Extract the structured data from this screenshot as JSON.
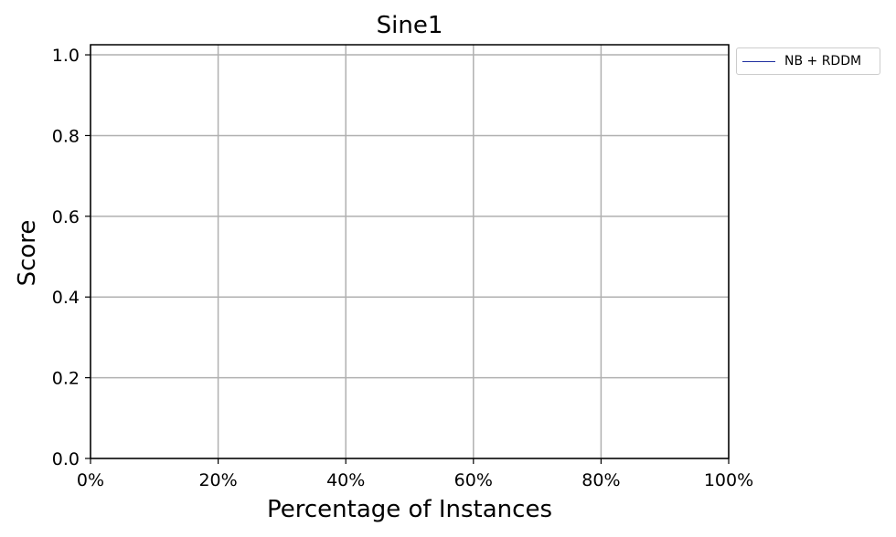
{
  "chart_data": {
    "type": "line",
    "title": "Sine1",
    "xlabel": "Percentage of Instances",
    "ylabel": "Score",
    "xlim": [
      0,
      100
    ],
    "ylim": [
      0,
      1.0
    ],
    "x_ticks": [
      "0%",
      "20%",
      "40%",
      "60%",
      "80%",
      "100%"
    ],
    "x_tick_values": [
      0,
      20,
      40,
      60,
      80,
      100
    ],
    "y_ticks": [
      "0.0",
      "0.2",
      "0.4",
      "0.6",
      "0.8",
      "1.0"
    ],
    "y_tick_values": [
      0.0,
      0.2,
      0.4,
      0.6,
      0.8,
      1.0
    ],
    "grid": true,
    "legend_position": "outside-top-right",
    "series": [
      {
        "name": "NB + RDDM",
        "color": "#1f2f9f",
        "x": [],
        "y": []
      }
    ]
  }
}
